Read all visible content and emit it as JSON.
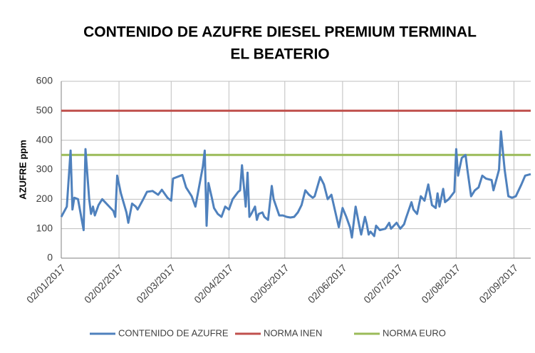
{
  "chart_data": {
    "type": "line",
    "title": [
      "CONTENIDO DE AZUFRE DIESEL PREMIUM TERMINAL",
      "EL BEATERIO"
    ],
    "y_label": "AZUFRE ppm",
    "xlim": [
      "2017-01-02",
      "2017-09-11"
    ],
    "xticks": [
      {
        "value": "2017-01-02",
        "label": "02/01/2017"
      },
      {
        "value": "2017-02-02",
        "label": "02/02/2017"
      },
      {
        "value": "2017-03-02",
        "label": "02/03/2017"
      },
      {
        "value": "2017-04-02",
        "label": "02/04/2017"
      },
      {
        "value": "2017-05-02",
        "label": "02/05/2017"
      },
      {
        "value": "2017-06-02",
        "label": "02/06/2017"
      },
      {
        "value": "2017-07-02",
        "label": "02/07/2017"
      },
      {
        "value": "2017-08-02",
        "label": "02/08/2017"
      },
      {
        "value": "2017-09-02",
        "label": "02/09/2017"
      }
    ],
    "ylim": [
      0,
      600
    ],
    "yticks": [
      0,
      100,
      200,
      300,
      400,
      500,
      600
    ],
    "grid": true,
    "legend": "bottom",
    "series": [
      {
        "name": "CONTENIDO DE AZUFRE",
        "color": "#4f81bd",
        "x": [
          "2017-01-02",
          "2017-01-05",
          "2017-01-07",
          "2017-01-08",
          "2017-01-09",
          "2017-01-11",
          "2017-01-14",
          "2017-01-15",
          "2017-01-17",
          "2017-01-18",
          "2017-01-19",
          "2017-01-20",
          "2017-01-22",
          "2017-01-24",
          "2017-01-27",
          "2017-01-30",
          "2017-01-31",
          "2017-02-01",
          "2017-02-03",
          "2017-02-06",
          "2017-02-07",
          "2017-02-09",
          "2017-02-11",
          "2017-02-12",
          "2017-02-15",
          "2017-02-17",
          "2017-02-20",
          "2017-02-23",
          "2017-02-25",
          "2017-02-28",
          "2017-03-02",
          "2017-03-03",
          "2017-03-08",
          "2017-03-10",
          "2017-03-13",
          "2017-03-15",
          "2017-03-19",
          "2017-03-20",
          "2017-03-21",
          "2017-03-22",
          "2017-03-24",
          "2017-03-25",
          "2017-03-27",
          "2017-03-29",
          "2017-03-31",
          "2017-04-02",
          "2017-04-04",
          "2017-04-07",
          "2017-04-08",
          "2017-04-09",
          "2017-04-11",
          "2017-04-12",
          "2017-04-13",
          "2017-04-14",
          "2017-04-16",
          "2017-04-17",
          "2017-04-18",
          "2017-04-20",
          "2017-04-21",
          "2017-04-23",
          "2017-04-25",
          "2017-04-26",
          "2017-04-29",
          "2017-05-01",
          "2017-05-03",
          "2017-05-05",
          "2017-05-07",
          "2017-05-09",
          "2017-05-11",
          "2017-05-13",
          "2017-05-15",
          "2017-05-17",
          "2017-05-18",
          "2017-05-21",
          "2017-05-23",
          "2017-05-25",
          "2017-05-27",
          "2017-05-29",
          "2017-05-31",
          "2017-06-02",
          "2017-06-04",
          "2017-06-06",
          "2017-06-07",
          "2017-06-09",
          "2017-06-11",
          "2017-06-12",
          "2017-06-14",
          "2017-06-15",
          "2017-06-16",
          "2017-06-17",
          "2017-06-19",
          "2017-06-20",
          "2017-06-22",
          "2017-06-25",
          "2017-06-27",
          "2017-06-28",
          "2017-07-01",
          "2017-07-03",
          "2017-07-05",
          "2017-07-06",
          "2017-07-09",
          "2017-07-10",
          "2017-07-12",
          "2017-07-14",
          "2017-07-16",
          "2017-07-18",
          "2017-07-20",
          "2017-07-22",
          "2017-07-23",
          "2017-07-24",
          "2017-07-26",
          "2017-07-27",
          "2017-07-29",
          "2017-08-01",
          "2017-08-02",
          "2017-08-03",
          "2017-08-05",
          "2017-08-07",
          "2017-08-08",
          "2017-08-10",
          "2017-08-12",
          "2017-08-14",
          "2017-08-16",
          "2017-08-18",
          "2017-08-21",
          "2017-08-22",
          "2017-08-25",
          "2017-08-26",
          "2017-08-28",
          "2017-08-30",
          "2017-09-01",
          "2017-09-03",
          "2017-09-06",
          "2017-09-08",
          "2017-09-11"
        ],
        "values": [
          140,
          175,
          365,
          165,
          205,
          200,
          95,
          370,
          200,
          150,
          175,
          145,
          180,
          200,
          180,
          160,
          140,
          280,
          220,
          155,
          120,
          185,
          175,
          165,
          200,
          225,
          228,
          215,
          232,
          205,
          195,
          270,
          282,
          240,
          210,
          175,
          310,
          365,
          110,
          255,
          200,
          170,
          150,
          140,
          175,
          165,
          200,
          225,
          230,
          315,
          175,
          290,
          140,
          150,
          175,
          130,
          150,
          155,
          140,
          130,
          245,
          200,
          145,
          145,
          140,
          138,
          140,
          155,
          180,
          230,
          215,
          205,
          210,
          275,
          250,
          200,
          215,
          160,
          105,
          170,
          140,
          105,
          70,
          175,
          110,
          80,
          140,
          115,
          80,
          90,
          75,
          110,
          95,
          100,
          120,
          100,
          120,
          100,
          115,
          135,
          190,
          165,
          150,
          210,
          195,
          250,
          180,
          170,
          220,
          175,
          235,
          190,
          200,
          225,
          370,
          280,
          340,
          350,
          300,
          210,
          230,
          240,
          280,
          270,
          265,
          230,
          300,
          430,
          300,
          210,
          205,
          210,
          250,
          280,
          285
        ]
      },
      {
        "name": "NORMA INEN",
        "color": "#c0504d",
        "x": [
          "2017-01-02",
          "2017-09-11"
        ],
        "values": [
          500,
          500
        ]
      },
      {
        "name": "NORMA EURO",
        "color": "#9bbb59",
        "x": [
          "2017-01-02",
          "2017-09-11"
        ],
        "values": [
          350,
          350
        ]
      }
    ]
  }
}
